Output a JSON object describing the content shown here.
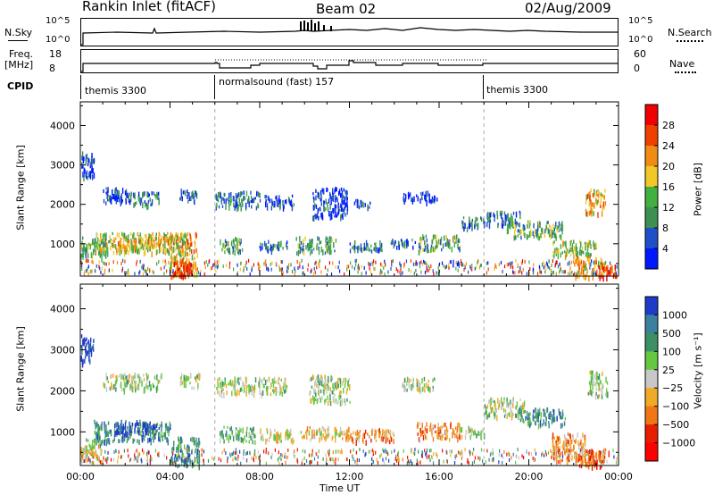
{
  "header": {
    "title": "Rankin Inlet (fitACF)",
    "beam": "Beam 02",
    "date": "02/Aug/2009"
  },
  "top_panels": {
    "nsky": {
      "label": "N.Sky",
      "ticks": [
        "10^5",
        "10^0"
      ]
    },
    "nsearch": {
      "label": "N.Search",
      "ticks": [
        "10^5",
        "10^0"
      ]
    },
    "freq": {
      "label_line1": "Freq.",
      "label_line2": "[MHz]",
      "ticks": [
        "18",
        "8"
      ]
    },
    "nave": {
      "label": "Nave",
      "ticks": [
        "60",
        "0"
      ]
    },
    "cpid": {
      "label": "CPID",
      "modes": [
        {
          "name": "themis 3300",
          "start_hour": 0,
          "end_hour": 6
        },
        {
          "name": "normalsound (fast) 157",
          "start_hour": 6,
          "end_hour": 18
        },
        {
          "name": "themis 3300",
          "start_hour": 18,
          "end_hour": 24
        }
      ]
    }
  },
  "colors": {
    "power": [
      "#0018ff",
      "#2050c8",
      "#3c9050",
      "#40b040",
      "#f0c828",
      "#f08c14",
      "#f04000",
      "#f00000"
    ],
    "velocity": [
      "#1e3cc8",
      "#3c80a0",
      "#3c9064",
      "#64c840",
      "#c8c8c8",
      "#f0aa28",
      "#f07814",
      "#e81e00",
      "#ff0000"
    ],
    "gray_dash": "#aaaaaa"
  },
  "chart_data": [
    {
      "type": "heatmap",
      "name": "power-panel",
      "ylabel": "Slant Range [km]",
      "yticks": [
        1000,
        2000,
        3000,
        4000
      ],
      "ylim": [
        180,
        4600
      ],
      "xlim": [
        0,
        24
      ],
      "colorbar_label": "Power [dB]",
      "colorbar_ticks": [
        "4",
        "8",
        "12",
        "16",
        "20",
        "24",
        "28"
      ],
      "colorbar_range": [
        0,
        32
      ],
      "regions": [
        {
          "x": [
            0.0,
            0.6
          ],
          "y": [
            2700,
            3400
          ],
          "level": 1
        },
        {
          "x": [
            1.0,
            2.2
          ],
          "y": [
            2050,
            2450
          ],
          "level": 1
        },
        {
          "x": [
            2.2,
            3.5
          ],
          "y": [
            2000,
            2350
          ],
          "level": 2
        },
        {
          "x": [
            4.4,
            5.2
          ],
          "y": [
            2100,
            2400
          ],
          "level": 2
        },
        {
          "x": [
            0.0,
            1.2
          ],
          "y": [
            700,
            1200
          ],
          "level": 3
        },
        {
          "x": [
            0.6,
            4.8
          ],
          "y": [
            800,
            1300
          ],
          "level": 4
        },
        {
          "x": [
            1.5,
            4.0
          ],
          "y": [
            900,
            1200
          ],
          "level": 5
        },
        {
          "x": [
            4.0,
            5.2
          ],
          "y": [
            200,
            1300
          ],
          "level": 5
        },
        {
          "x": [
            4.1,
            5.0
          ],
          "y": [
            180,
            600
          ],
          "level": 7
        },
        {
          "x": [
            6.0,
            8.0
          ],
          "y": [
            1950,
            2350
          ],
          "level": 2
        },
        {
          "x": [
            8.2,
            9.5
          ],
          "y": [
            1950,
            2250
          ],
          "level": 1
        },
        {
          "x": [
            10.3,
            11.9
          ],
          "y": [
            1700,
            2450
          ],
          "level": 1
        },
        {
          "x": [
            12.2,
            13.0
          ],
          "y": [
            1950,
            2150
          ],
          "level": 1
        },
        {
          "x": [
            14.3,
            15.9
          ],
          "y": [
            2100,
            2350
          ],
          "level": 1
        },
        {
          "x": [
            6.2,
            7.2
          ],
          "y": [
            800,
            1200
          ],
          "level": 3
        },
        {
          "x": [
            7.9,
            9.2
          ],
          "y": [
            850,
            1100
          ],
          "level": 2
        },
        {
          "x": [
            9.6,
            11.4
          ],
          "y": [
            800,
            1200
          ],
          "level": 3
        },
        {
          "x": [
            12.0,
            13.5
          ],
          "y": [
            850,
            1100
          ],
          "level": 2
        },
        {
          "x": [
            13.8,
            15.0
          ],
          "y": [
            950,
            1150
          ],
          "level": 2
        },
        {
          "x": [
            15.0,
            16.9
          ],
          "y": [
            850,
            1250
          ],
          "level": 3
        },
        {
          "x": [
            17.0,
            18.0
          ],
          "y": [
            1400,
            1700
          ],
          "level": 2
        },
        {
          "x": [
            18.0,
            19.6
          ],
          "y": [
            1500,
            1850
          ],
          "level": 2
        },
        {
          "x": [
            19.0,
            21.5
          ],
          "y": [
            1200,
            1600
          ],
          "level": 3
        },
        {
          "x": [
            21.0,
            23.0
          ],
          "y": [
            700,
            1100
          ],
          "level": 4
        },
        {
          "x": [
            22.0,
            23.4
          ],
          "y": [
            180,
            700
          ],
          "level": 5
        },
        {
          "x": [
            22.5,
            23.4
          ],
          "y": [
            1800,
            2400
          ],
          "level": 5
        },
        {
          "x": [
            23.1,
            23.9
          ],
          "y": [
            180,
            500
          ],
          "level": 7
        }
      ]
    },
    {
      "type": "heatmap",
      "name": "velocity-panel",
      "ylabel": "Slant Range [km]",
      "yticks": [
        1000,
        2000,
        3000,
        4000
      ],
      "ylim": [
        180,
        4600
      ],
      "xlim": [
        0,
        24
      ],
      "xlabel": "Time UT",
      "xticks": [
        "00:00",
        "04:00",
        "08:00",
        "12:00",
        "16:00",
        "20:00",
        "00:00"
      ],
      "colorbar_label": "Velocity [m s⁻¹]",
      "colorbar_ticks": [
        "1000",
        "500",
        "100",
        "25",
        "−25",
        "−100",
        "−500",
        "−1000"
      ],
      "regions": [
        {
          "x": [
            0.0,
            0.6
          ],
          "y": [
            2700,
            3400
          ],
          "level": 0
        },
        {
          "x": [
            1.0,
            3.6
          ],
          "y": [
            2050,
            2450
          ],
          "level": 4
        },
        {
          "x": [
            4.4,
            5.3
          ],
          "y": [
            2100,
            2450
          ],
          "level": 4
        },
        {
          "x": [
            0.0,
            1.0
          ],
          "y": [
            300,
            700
          ],
          "level": 5
        },
        {
          "x": [
            0.6,
            4.0
          ],
          "y": [
            800,
            1300
          ],
          "level": 2
        },
        {
          "x": [
            1.5,
            3.5
          ],
          "y": [
            1000,
            1250
          ],
          "level": 0
        },
        {
          "x": [
            0.2,
            1.2
          ],
          "y": [
            650,
            850
          ],
          "level": 3
        },
        {
          "x": [
            4.0,
            5.3
          ],
          "y": [
            180,
            900
          ],
          "level": 2
        },
        {
          "x": [
            6.0,
            9.2
          ],
          "y": [
            1950,
            2350
          ],
          "level": 4
        },
        {
          "x": [
            10.2,
            12.0
          ],
          "y": [
            1750,
            2400
          ],
          "level": 4
        },
        {
          "x": [
            14.3,
            15.8
          ],
          "y": [
            2050,
            2350
          ],
          "level": 4
        },
        {
          "x": [
            6.2,
            7.8
          ],
          "y": [
            800,
            1150
          ],
          "level": 3
        },
        {
          "x": [
            8.0,
            9.5
          ],
          "y": [
            800,
            1100
          ],
          "level": 5
        },
        {
          "x": [
            9.8,
            12.0
          ],
          "y": [
            850,
            1150
          ],
          "level": 5
        },
        {
          "x": [
            12.0,
            14.0
          ],
          "y": [
            800,
            1100
          ],
          "level": 6
        },
        {
          "x": [
            15.0,
            16.9
          ],
          "y": [
            850,
            1250
          ],
          "level": 6
        },
        {
          "x": [
            16.9,
            18.0
          ],
          "y": [
            900,
            1150
          ],
          "level": 4
        },
        {
          "x": [
            18.0,
            19.8
          ],
          "y": [
            1400,
            1850
          ],
          "level": 4
        },
        {
          "x": [
            19.5,
            21.6
          ],
          "y": [
            1200,
            1600
          ],
          "level": 2
        },
        {
          "x": [
            21.0,
            22.5
          ],
          "y": [
            300,
            1000
          ],
          "level": 6
        },
        {
          "x": [
            22.0,
            23.4
          ],
          "y": [
            180,
            600
          ],
          "level": 7
        },
        {
          "x": [
            22.6,
            23.5
          ],
          "y": [
            1900,
            2500
          ],
          "level": 4
        }
      ]
    }
  ]
}
